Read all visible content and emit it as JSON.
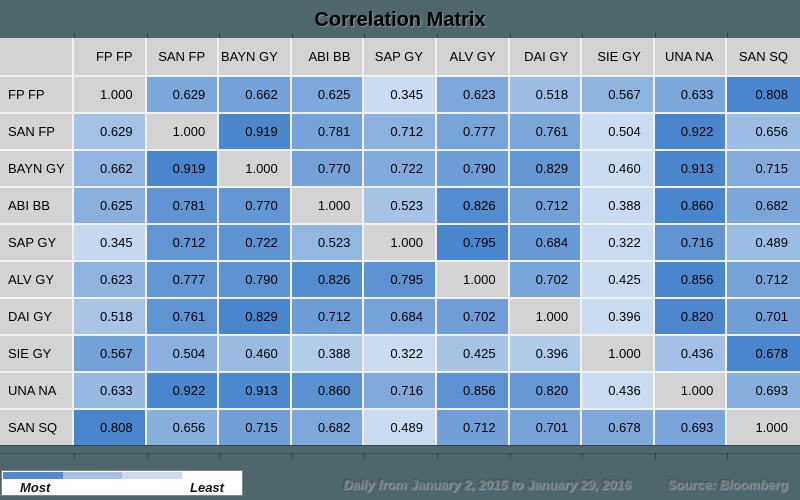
{
  "title": "Correlation Matrix",
  "chart_data": {
    "type": "heatmap",
    "title": "Correlation Matrix",
    "categories": [
      "FP FP",
      "SAN FP",
      "BAYN GY",
      "ABI BB",
      "SAP GY",
      "ALV GY",
      "DAI GY",
      "SIE GY",
      "UNA NA",
      "SAN SQ"
    ],
    "rows": [
      [
        1.0,
        0.629,
        0.662,
        0.625,
        0.345,
        0.623,
        0.518,
        0.567,
        0.633,
        0.808
      ],
      [
        0.629,
        1.0,
        0.919,
        0.781,
        0.712,
        0.777,
        0.761,
        0.504,
        0.922,
        0.656
      ],
      [
        0.662,
        0.919,
        1.0,
        0.77,
        0.722,
        0.79,
        0.829,
        0.46,
        0.913,
        0.715
      ],
      [
        0.625,
        0.781,
        0.77,
        1.0,
        0.523,
        0.826,
        0.712,
        0.388,
        0.86,
        0.682
      ],
      [
        0.345,
        0.712,
        0.722,
        0.523,
        1.0,
        0.795,
        0.684,
        0.322,
        0.716,
        0.489
      ],
      [
        0.623,
        0.777,
        0.79,
        0.826,
        0.795,
        1.0,
        0.702,
        0.425,
        0.856,
        0.712
      ],
      [
        0.518,
        0.761,
        0.829,
        0.712,
        0.684,
        0.702,
        1.0,
        0.396,
        0.82,
        0.701
      ],
      [
        0.567,
        0.504,
        0.46,
        0.388,
        0.322,
        0.425,
        0.396,
        1.0,
        0.436,
        0.678
      ],
      [
        0.633,
        0.922,
        0.913,
        0.86,
        0.716,
        0.856,
        0.82,
        0.436,
        1.0,
        0.693
      ],
      [
        0.808,
        0.656,
        0.715,
        0.682,
        0.489,
        0.712,
        0.701,
        0.678,
        0.693,
        1.0
      ]
    ],
    "value_decimals": 3,
    "shading": "per-row min-to-max, diagonal excluded",
    "legend_position": "bottom-left"
  },
  "legend": {
    "most_label": "Most",
    "least_label": "Least"
  },
  "footer": {
    "period": "Daily from January 2, 2015 to January 29, 2016",
    "source": "Source: Bloomberg"
  },
  "colors": {
    "background": "#4e666c",
    "header_bg": "#d3d3d3",
    "diagonal_bg": "#d3d3d3",
    "cell_scale_low": "#cbdcf0",
    "cell_scale_high": "#4a86cd",
    "legend_segments": [
      "#5089d1",
      "#a2c0e6",
      "#cbdcf0",
      "#ffffff"
    ]
  }
}
